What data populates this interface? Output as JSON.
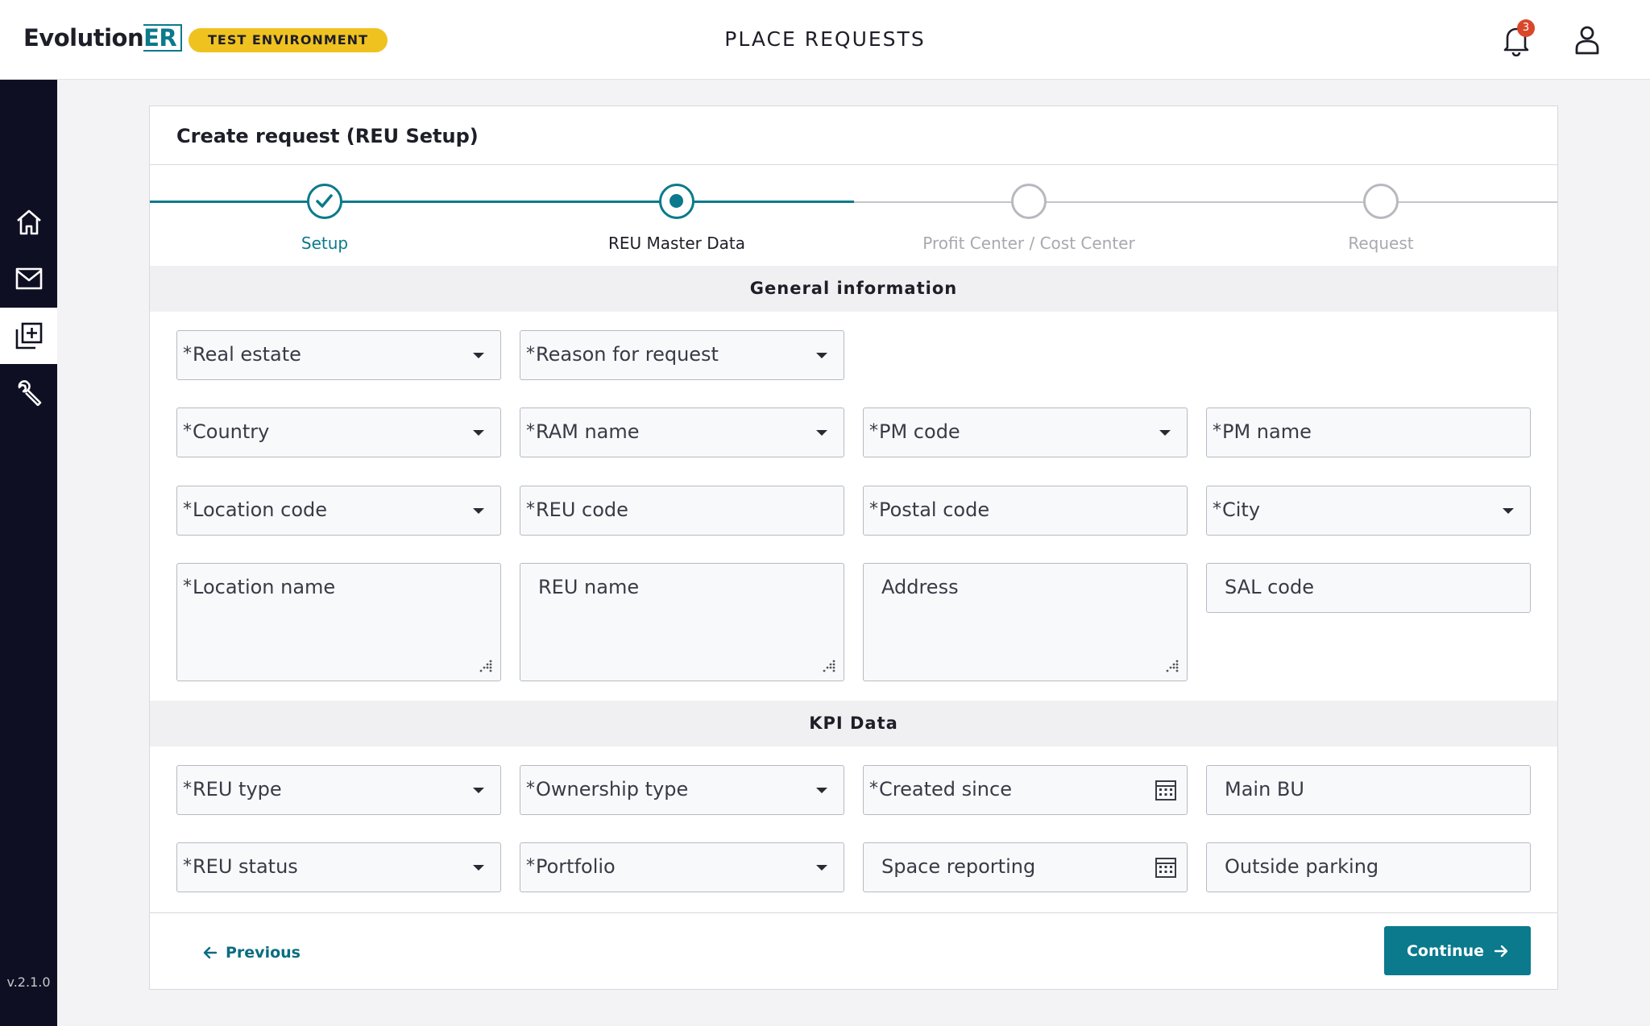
{
  "app": {
    "logo_main": "Evolution",
    "logo_suffix": "ER",
    "environment_badge": "TEST ENVIRONMENT",
    "page_title": "PLACE REQUESTS",
    "notifications_count": "3",
    "version": "v.2.1.0"
  },
  "sidebar": {
    "items": [
      {
        "icon": "home-icon",
        "active": false
      },
      {
        "icon": "mail-icon",
        "active": false
      },
      {
        "icon": "add-request-icon",
        "active": true
      },
      {
        "icon": "wrench-icon",
        "active": false
      }
    ]
  },
  "card": {
    "title": "Create request (REU Setup)"
  },
  "stepper": {
    "steps": [
      {
        "label": "Setup",
        "state": "completed"
      },
      {
        "label": "REU Master Data",
        "state": "current"
      },
      {
        "label": "Profit Center / Cost Center",
        "state": "pending"
      },
      {
        "label": "Request",
        "state": "pending"
      }
    ]
  },
  "sections": {
    "general": "General information",
    "kpi": "KPI Data"
  },
  "fields": {
    "real_estate": {
      "label": "Real estate",
      "required": true
    },
    "reason_for_request": {
      "label": "Reason for request",
      "required": true
    },
    "country": {
      "label": "Country",
      "required": true
    },
    "ram_name": {
      "label": "RAM name",
      "required": true
    },
    "pm_code": {
      "label": "PM code",
      "required": true
    },
    "pm_name": {
      "label": "PM name",
      "required": true
    },
    "location_code": {
      "label": "Location code",
      "required": true
    },
    "reu_code": {
      "label": "REU code",
      "required": true
    },
    "postal_code": {
      "label": "Postal code",
      "required": true
    },
    "city": {
      "label": "City",
      "required": true
    },
    "location_name": {
      "label": "Location name",
      "required": true
    },
    "reu_name": {
      "label": "REU name",
      "required": false
    },
    "address": {
      "label": "Address",
      "required": false
    },
    "sal_code": {
      "label": "SAL code",
      "required": false
    },
    "reu_type": {
      "label": "REU type",
      "required": true
    },
    "ownership_type": {
      "label": "Ownership type",
      "required": true
    },
    "created_since": {
      "label": "Created since",
      "required": true
    },
    "main_bu": {
      "label": "Main BU",
      "required": false
    },
    "reu_status": {
      "label": "REU status",
      "required": true
    },
    "portfolio": {
      "label": "Portfolio",
      "required": true
    },
    "space_reporting": {
      "label": "Space reporting",
      "required": false
    },
    "outside_parking": {
      "label": "Outside parking",
      "required": false
    }
  },
  "footer": {
    "previous": "Previous",
    "continue": "Continue"
  },
  "colors": {
    "accent": "#0a7a8c",
    "badge": "#efc220",
    "sidebar": "#0f0f23",
    "notification": "#d9472b"
  }
}
